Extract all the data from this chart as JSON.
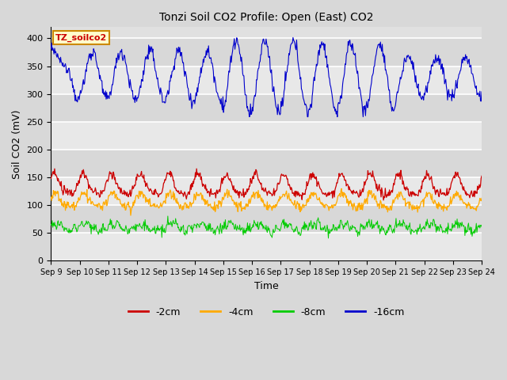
{
  "title": "Tonzi Soil CO2 Profile: Open (East) CO2",
  "ylabel": "Soil CO2 (mV)",
  "xlabel": "Time",
  "xlim_days": [
    9,
    24
  ],
  "ylim": [
    0,
    420
  ],
  "yticks": [
    0,
    50,
    100,
    150,
    200,
    250,
    300,
    350,
    400
  ],
  "xtick_labels": [
    "Sep 9",
    "Sep 10",
    "Sep 11",
    "Sep 12",
    "Sep 13",
    "Sep 14",
    "Sep 15",
    "Sep 16",
    "Sep 17",
    "Sep 18",
    "Sep 19",
    "Sep 20",
    "Sep 21",
    "Sep 22",
    "Sep 23",
    "Sep 24"
  ],
  "fig_bg": "#d8d8d8",
  "plot_bg": "#e0e0e0",
  "grid_color": "#ffffff",
  "band_light": "#e8e8e8",
  "band_dark": "#d8d8d8",
  "neg2cm_color": "#cc0000",
  "neg4cm_color": "#ffaa00",
  "neg8cm_color": "#00cc00",
  "neg16cm_color": "#0000cc",
  "annotation_text": "TZ_soilco2",
  "annotation_bg": "#ffffcc",
  "annotation_border": "#cc8800",
  "annotation_text_color": "#cc0000",
  "legend_colors": [
    "#cc0000",
    "#ffaa00",
    "#00cc00",
    "#0000cc"
  ],
  "legend_labels": [
    "-2cm",
    "-4cm",
    "-8cm",
    "-16cm"
  ]
}
